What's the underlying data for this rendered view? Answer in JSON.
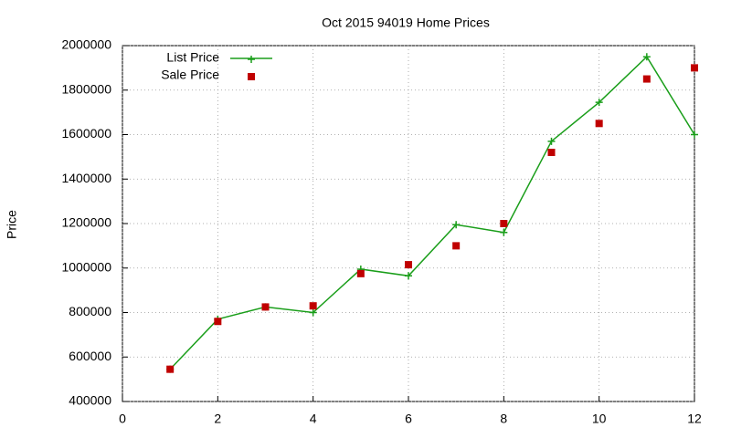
{
  "chart_data": {
    "type": "line",
    "title": "Oct 2015 94019 Home Prices",
    "y_label": "Price",
    "x": [
      1,
      2,
      3,
      4,
      5,
      6,
      7,
      8,
      9,
      10,
      11,
      12
    ],
    "series": [
      {
        "name": "List Price",
        "color": "#1a9e1a",
        "marker": "plus",
        "line": true,
        "values": [
          545000,
          770000,
          825000,
          800000,
          995000,
          965000,
          1195000,
          1160000,
          1570000,
          1745000,
          1950000,
          1600000
        ]
      },
      {
        "name": "Sale Price",
        "color": "#c00000",
        "marker": "square",
        "line": false,
        "values": [
          545000,
          760000,
          825000,
          830000,
          975000,
          1015000,
          1100000,
          1200000,
          1520000,
          1650000,
          1850000,
          1900000
        ]
      }
    ],
    "xlim": [
      0,
      12
    ],
    "xticks": [
      0,
      2,
      4,
      6,
      8,
      10,
      12
    ],
    "ylim": [
      400000,
      2000000
    ],
    "yticks": [
      400000,
      600000,
      800000,
      1000000,
      1200000,
      1400000,
      1600000,
      1800000,
      2000000
    ],
    "grid": true,
    "legend": "top-left"
  }
}
